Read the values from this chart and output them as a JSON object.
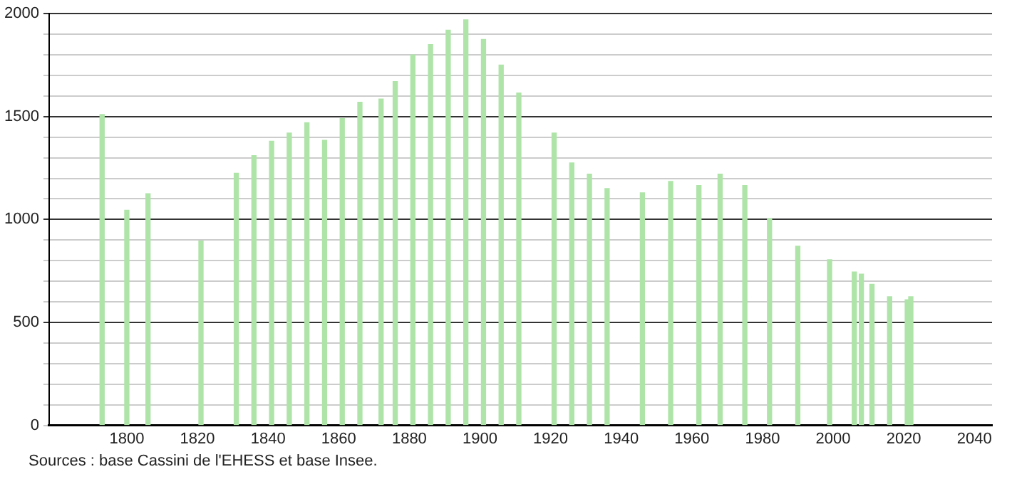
{
  "chart_data": {
    "type": "bar",
    "x": [
      1793,
      1800,
      1806,
      1821,
      1831,
      1836,
      1841,
      1846,
      1851,
      1856,
      1861,
      1866,
      1872,
      1876,
      1881,
      1886,
      1891,
      1896,
      1901,
      1906,
      1911,
      1921,
      1926,
      1931,
      1936,
      1946,
      1954,
      1962,
      1968,
      1975,
      1982,
      1990,
      1999,
      2006,
      2008,
      2011,
      2016,
      2021,
      2022
    ],
    "values": [
      1510,
      1045,
      1125,
      895,
      1225,
      1310,
      1380,
      1420,
      1470,
      1385,
      1490,
      1570,
      1585,
      1670,
      1800,
      1850,
      1920,
      1970,
      1875,
      1750,
      1615,
      1420,
      1275,
      1220,
      1150,
      1130,
      1185,
      1165,
      1220,
      1165,
      1005,
      870,
      805,
      745,
      735,
      685,
      625,
      610,
      625
    ],
    "color": "#aee4a8",
    "xlim": [
      1778,
      2045
    ],
    "xticks": [
      1800,
      1820,
      1840,
      1860,
      1880,
      1900,
      1920,
      1940,
      1960,
      1980,
      2000,
      2020,
      2040
    ],
    "ylim": [
      0,
      2000
    ],
    "yticks": [
      0,
      {
        "value": 100,
        "label": null
      },
      {
        "value": 200,
        "label": null
      },
      {
        "value": 300,
        "label": null
      },
      {
        "value": 400,
        "label": null
      },
      500,
      {
        "value": 600,
        "label": null
      },
      {
        "value": 700,
        "label": null
      },
      {
        "value": 800,
        "label": null
      },
      {
        "value": 900,
        "label": null
      },
      1000,
      {
        "value": 1100,
        "label": null
      },
      {
        "value": 1200,
        "label": null
      },
      {
        "value": 1300,
        "label": null
      },
      {
        "value": 1400,
        "label": null
      },
      1500,
      {
        "value": 1600,
        "label": null
      },
      {
        "value": 1700,
        "label": null
      },
      {
        "value": 1800,
        "label": null
      },
      {
        "value": 1900,
        "label": null
      },
      2000
    ],
    "grid": "y",
    "annotations": [
      "Sources : base Cassini de l'EHESS et base Insee."
    ]
  }
}
